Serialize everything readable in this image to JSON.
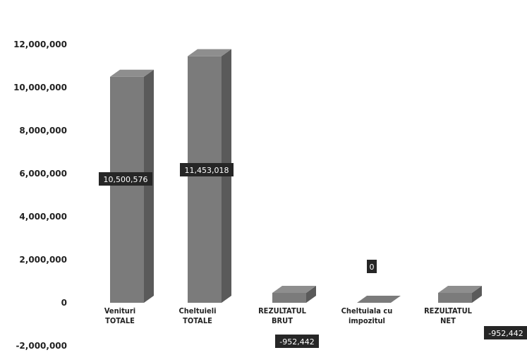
{
  "chart_data": {
    "type": "bar",
    "title": "",
    "xlabel": "",
    "ylabel": "",
    "ylim": [
      -2000000,
      12000000
    ],
    "yticks": [
      -2000000,
      0,
      2000000,
      4000000,
      6000000,
      8000000,
      10000000,
      12000000
    ],
    "ytick_labels": [
      "-2,000,000",
      "0",
      "2,000,000",
      "4,000,000",
      "6,000,000",
      "8,000,000",
      "10,000,000",
      "12,000,000"
    ],
    "categories": [
      [
        "Venituri",
        "TOTALE"
      ],
      [
        "Cheltuieli",
        "TOTALE"
      ],
      [
        "REZULTATUL",
        "BRUT"
      ],
      [
        "Cheltuiala cu",
        "impozitul"
      ],
      [
        "REZULTATUL",
        "NET"
      ]
    ],
    "values": [
      10500576,
      11453018,
      -952442,
      0,
      -952442
    ],
    "data_labels": [
      "10,500,576",
      "11,453,018",
      "-952,442",
      "0",
      "-952,442"
    ],
    "grid": false,
    "colors": {
      "bar": "#7b7b7b",
      "bar_side": "#5a5a5a",
      "bar_top": "#8e8e8e",
      "label_bg": "#262626"
    }
  }
}
